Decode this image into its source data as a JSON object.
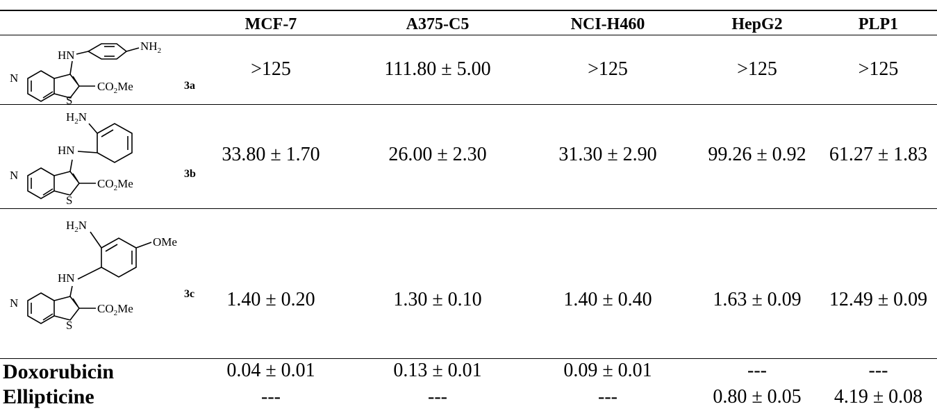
{
  "table": {
    "columns": [
      "MCF-7",
      "A375-C5",
      "NCI-H460",
      "HepG2",
      "PLP1"
    ],
    "rows": [
      {
        "label": "3a",
        "structure": {
          "amine": "NH2",
          "linker": "HN",
          "ester": "CO2Me",
          "sulfur": "S",
          "nitrogen": "N"
        },
        "values": [
          ">125",
          "111.80 ± 5.00",
          ">125",
          ">125",
          ">125"
        ]
      },
      {
        "label": "3b",
        "structure": {
          "amine": "H2N",
          "linker": "HN",
          "ester": "CO2Me",
          "sulfur": "S",
          "nitrogen": "N"
        },
        "values": [
          "33.80 ± 1.70",
          "26.00 ± 2.30",
          "31.30 ± 2.90",
          "99.26 ± 0.92",
          "61.27 ± 1.83"
        ]
      },
      {
        "label": "3c",
        "structure": {
          "amine": "H2N",
          "methoxy": "OMe",
          "linker": "HN",
          "ester": "CO2Me",
          "sulfur": "S",
          "nitrogen": "N"
        },
        "values": [
          "1.40 ± 0.20",
          "1.30 ± 0.10",
          "1.40 ± 0.40",
          "1.63 ± 0.09",
          "12.49 ± 0.09"
        ]
      },
      {
        "label": "Doxorubicin",
        "values": [
          "0.04 ± 0.01",
          "0.13 ± 0.01",
          "0.09 ± 0.01",
          "---",
          "---"
        ]
      },
      {
        "label": "Ellipticine",
        "values": [
          "---",
          "---",
          "---",
          "0.80 ± 0.05",
          "4.19 ± 0.08"
        ]
      }
    ]
  }
}
